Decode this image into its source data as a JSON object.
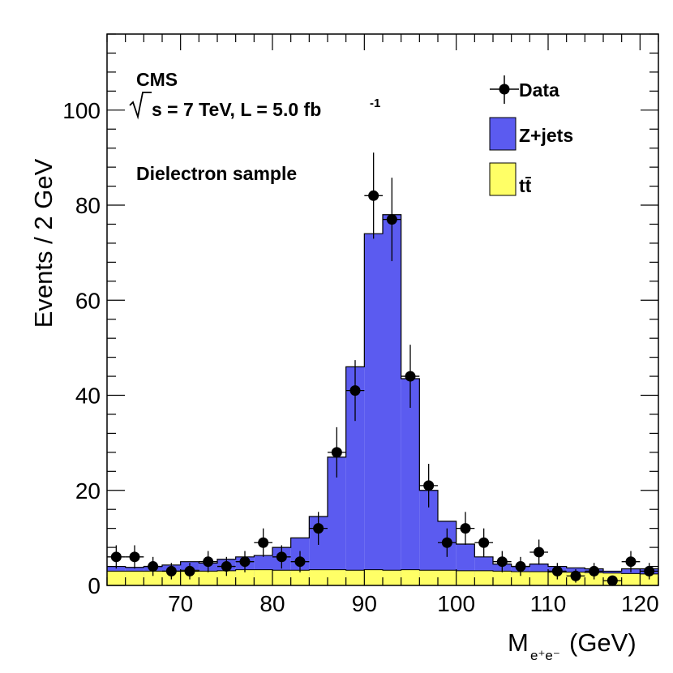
{
  "chart_data": {
    "type": "histogram",
    "experiment": "CMS",
    "energy_lumi_prefix": "s = 7 TeV, L = 5.0 fb",
    "energy_lumi_superscript": "-1",
    "sample_label": "Dielectron sample",
    "ylabel": "Events / 2 GeV",
    "xlabel_main": "M",
    "xlabel_subscript": "e⁺e⁻",
    "xlabel_unit": "(GeV)",
    "xlim": [
      62,
      122
    ],
    "ylim": [
      0,
      116
    ],
    "x_ticks": [
      70,
      80,
      90,
      100,
      110,
      120
    ],
    "y_ticks": [
      0,
      20,
      40,
      60,
      80,
      100
    ],
    "legend": {
      "position": "top-right",
      "data_label": "Data",
      "zjets_label": "Z+jets",
      "ttbar_label": "tt̄"
    },
    "colors": {
      "zjets": "#5b5bf0",
      "ttbar": "#ffff66",
      "data": "#000000"
    },
    "bin_edges": [
      62,
      64,
      66,
      68,
      70,
      72,
      74,
      76,
      78,
      80,
      82,
      84,
      86,
      88,
      90,
      92,
      94,
      96,
      98,
      100,
      102,
      104,
      106,
      108,
      110,
      112,
      114,
      116,
      118,
      120,
      122
    ],
    "ttbar": [
      3,
      3,
      3,
      3,
      3.2,
      3,
      3.1,
      3.3,
      3.3,
      3.2,
      3.2,
      3.3,
      3.3,
      3.2,
      3.3,
      3.2,
      3.3,
      3.2,
      3.2,
      3.1,
      3.1,
      3,
      2.9,
      2.9,
      2.8,
      2.8,
      2.7,
      2.6,
      2.5,
      2.4
    ],
    "zjets_total": [
      4,
      3.8,
      4,
      4.3,
      5,
      4.7,
      5.5,
      6,
      6.3,
      8,
      10,
      14.5,
      27,
      46,
      74,
      78,
      43.5,
      20,
      13.5,
      8.7,
      6,
      4.5,
      4,
      4.5,
      4,
      3.7,
      3.5,
      3,
      3.5,
      3.5
    ],
    "data_x": [
      63,
      65,
      67,
      69,
      71,
      73,
      75,
      77,
      79,
      81,
      83,
      85,
      87,
      89,
      91,
      93,
      95,
      97,
      99,
      101,
      103,
      105,
      107,
      109,
      111,
      113,
      115,
      117,
      119,
      121
    ],
    "data_y": [
      6,
      6,
      4,
      3,
      3,
      5,
      4,
      5,
      9,
      6,
      5,
      12,
      28,
      41,
      82,
      77,
      44,
      21,
      9,
      12,
      9,
      5,
      4,
      7,
      3,
      2,
      3,
      1,
      5,
      3
    ]
  }
}
